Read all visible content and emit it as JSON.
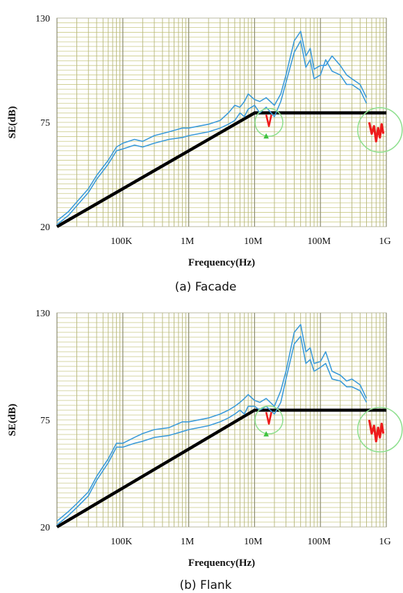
{
  "chart_data": [
    {
      "type": "line",
      "caption": "(a)  Facade",
      "xlabel": "Frequency(Hz)",
      "ylabel": "SE(dB)",
      "xscale": "log",
      "xlim": [
        10000,
        1000000000
      ],
      "ylim": [
        20,
        130
      ],
      "xtick_labels": [
        {
          "value": 100000,
          "label": "100K"
        },
        {
          "value": 1000000,
          "label": "1M"
        },
        {
          "value": 10000000,
          "label": "10M"
        },
        {
          "value": 100000000,
          "label": "100M"
        },
        {
          "value": 1000000000,
          "label": "1G"
        }
      ],
      "ytick_labels": [
        {
          "value": 130,
          "label": "130"
        },
        {
          "value": 75,
          "label": "75"
        },
        {
          "value": 20,
          "label": "20"
        }
      ],
      "grid": true,
      "limit_line": {
        "x": [
          10000,
          10000000,
          1000000000
        ],
        "y": [
          20,
          80,
          80
        ],
        "color": "#000000"
      },
      "series": [
        {
          "color": "#3a9ad9",
          "x": [
            10000,
            15000,
            20000,
            30000,
            40000,
            60000,
            80000,
            100000,
            150000,
            200000,
            300000,
            500000,
            800000,
            1000000,
            2000000,
            3000000,
            4000000,
            5000000,
            6000000,
            7000000,
            8000000,
            10000000,
            12000000,
            15000000,
            20000000,
            25000000,
            30000000,
            40000000,
            50000000,
            60000000,
            70000000,
            80000000,
            100000000,
            120000000,
            150000000,
            200000000,
            250000000,
            300000000,
            400000000,
            500000000
          ],
          "y": [
            23,
            28,
            33,
            40,
            47,
            55,
            62,
            64,
            66,
            65,
            68,
            70,
            72,
            72,
            74,
            76,
            80,
            84,
            83,
            86,
            90,
            87,
            86,
            88,
            84,
            90,
            100,
            118,
            123,
            110,
            114,
            103,
            105,
            105,
            110,
            105,
            100,
            98,
            95,
            88
          ]
        },
        {
          "color": "#3a9ad9",
          "x": [
            10000,
            15000,
            20000,
            30000,
            40000,
            60000,
            80000,
            100000,
            150000,
            200000,
            300000,
            500000,
            800000,
            1000000,
            2000000,
            3000000,
            4000000,
            5000000,
            6000000,
            7000000,
            8000000,
            10000000,
            12000000,
            15000000,
            20000000,
            25000000,
            30000000,
            40000000,
            50000000,
            60000000,
            70000000,
            80000000,
            100000000,
            120000000,
            150000000,
            200000000,
            250000000,
            300000000,
            400000000,
            500000000
          ],
          "y": [
            21,
            26,
            31,
            38,
            45,
            53,
            60,
            61,
            63,
            62,
            64,
            66,
            67,
            68,
            70,
            72,
            74,
            76,
            80,
            78,
            82,
            84,
            80,
            83,
            78,
            86,
            96,
            112,
            118,
            104,
            108,
            98,
            100,
            108,
            102,
            100,
            95,
            95,
            92,
            85
          ]
        },
        {
          "color": "#ee1b1b",
          "x": [
            15000000,
            16500000,
            18000000,
            550000000,
            600000000,
            650000000,
            700000000,
            750000000,
            800000000,
            850000000,
            900000000
          ],
          "y": [
            79,
            73,
            79,
            75,
            69,
            73,
            65,
            72,
            67,
            74,
            69
          ]
        }
      ],
      "annotations": [
        {
          "type": "circle",
          "x": 16500000,
          "y": 75,
          "color": "#90e090"
        },
        {
          "type": "circle",
          "x": 800000000,
          "y": 71,
          "color": "#90e090"
        },
        {
          "type": "marker",
          "x": 15000000,
          "y": 67,
          "label": "▲",
          "color": "#3fc23f"
        }
      ]
    },
    {
      "type": "line",
      "caption": "(b)  Flank",
      "xlabel": "Frequency(Hz)",
      "ylabel": "SE(dB)",
      "xscale": "log",
      "xlim": [
        10000,
        1000000000
      ],
      "ylim": [
        20,
        130
      ],
      "xtick_labels": [
        {
          "value": 100000,
          "label": "100K"
        },
        {
          "value": 1000000,
          "label": "1M"
        },
        {
          "value": 10000000,
          "label": "10M"
        },
        {
          "value": 100000000,
          "label": "100M"
        },
        {
          "value": 1000000000,
          "label": "1G"
        }
      ],
      "ytick_labels": [
        {
          "value": 130,
          "label": "130"
        },
        {
          "value": 75,
          "label": "75"
        },
        {
          "value": 20,
          "label": "20"
        }
      ],
      "grid": true,
      "limit_line": {
        "x": [
          10000,
          10000000,
          1000000000
        ],
        "y": [
          20,
          80,
          80
        ],
        "color": "#000000"
      },
      "series": [
        {
          "color": "#3a9ad9",
          "x": [
            10000,
            15000,
            20000,
            30000,
            40000,
            60000,
            80000,
            100000,
            150000,
            200000,
            300000,
            500000,
            800000,
            1000000,
            2000000,
            3000000,
            4000000,
            5000000,
            6000000,
            7000000,
            8000000,
            10000000,
            12000000,
            15000000,
            20000000,
            25000000,
            30000000,
            40000000,
            50000000,
            60000000,
            70000000,
            80000000,
            100000000,
            120000000,
            150000000,
            200000000,
            250000000,
            300000000,
            400000000,
            500000000
          ],
          "y": [
            23,
            28,
            32,
            38,
            46,
            55,
            63,
            63,
            66,
            68,
            70,
            71,
            74,
            74,
            76,
            78,
            80,
            82,
            84,
            86,
            88,
            85,
            84,
            86,
            82,
            90,
            100,
            120,
            124,
            110,
            112,
            104,
            105,
            110,
            100,
            98,
            95,
            96,
            93,
            86
          ]
        },
        {
          "color": "#3a9ad9",
          "x": [
            10000,
            15000,
            20000,
            30000,
            40000,
            60000,
            80000,
            100000,
            150000,
            200000,
            300000,
            500000,
            800000,
            1000000,
            2000000,
            3000000,
            4000000,
            5000000,
            6000000,
            7000000,
            8000000,
            10000000,
            12000000,
            15000000,
            20000000,
            25000000,
            30000000,
            40000000,
            50000000,
            60000000,
            70000000,
            80000000,
            100000000,
            120000000,
            150000000,
            200000000,
            250000000,
            300000000,
            400000000,
            500000000
          ],
          "y": [
            21,
            26,
            30,
            36,
            44,
            53,
            61,
            61,
            63,
            64,
            66,
            67,
            69,
            70,
            72,
            74,
            76,
            78,
            80,
            78,
            82,
            82,
            80,
            82,
            78,
            84,
            96,
            114,
            118,
            104,
            106,
            100,
            102,
            104,
            96,
            95,
            92,
            92,
            90,
            84
          ]
        },
        {
          "color": "#ee1b1b",
          "x": [
            15000000,
            16500000,
            18000000,
            550000000,
            600000000,
            650000000,
            700000000,
            750000000,
            800000000,
            850000000,
            900000000
          ],
          "y": [
            79,
            73,
            79,
            75,
            68,
            72,
            64,
            71,
            66,
            73,
            68
          ]
        }
      ],
      "annotations": [
        {
          "type": "circle",
          "x": 16500000,
          "y": 75,
          "color": "#90e090"
        },
        {
          "type": "circle",
          "x": 800000000,
          "y": 70,
          "color": "#90e090"
        },
        {
          "type": "marker",
          "x": 15000000,
          "y": 67,
          "label": "▲",
          "color": "#3fc23f"
        }
      ]
    }
  ]
}
